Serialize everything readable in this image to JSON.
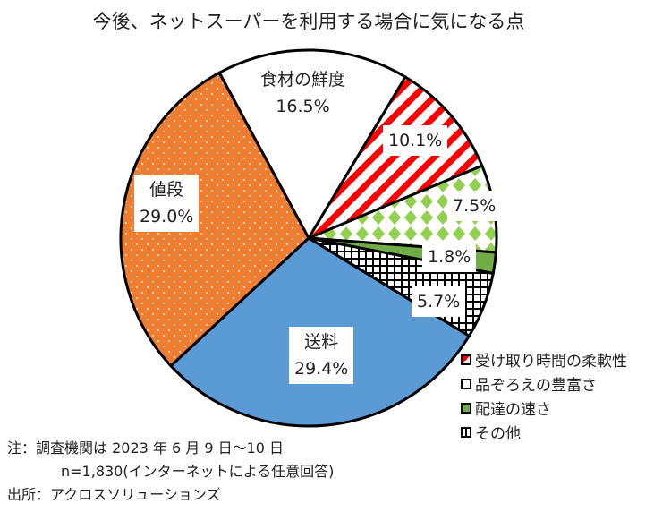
{
  "chart_data": {
    "type": "pie",
    "title": "今後、ネットスーパーを利用する場合に気になる点",
    "start_angle_deg": -28.4,
    "slices": [
      {
        "name": "食材の鮮度",
        "value": 16.5,
        "label": "16.5%",
        "fill": "#ffffff",
        "pattern": "none"
      },
      {
        "name": "受け取り時間の柔軟性",
        "value": 10.1,
        "label": "10.1%",
        "fill": "#ff0000",
        "pattern": "stripes"
      },
      {
        "name": "品ぞろえの豊富さ",
        "value": 7.5,
        "label": "7.5%",
        "fill": "#92d050",
        "pattern": "diamonds"
      },
      {
        "name": "配達の速さ",
        "value": 1.8,
        "label": "1.8%",
        "fill": "#70ad47",
        "pattern": "solid"
      },
      {
        "name": "その他",
        "value": 5.7,
        "label": "5.7%",
        "fill": "#000000",
        "pattern": "grid"
      },
      {
        "name": "送料",
        "value": 29.4,
        "label": "29.4%",
        "fill": "#5b9bd5",
        "pattern": "solid"
      },
      {
        "name": "値段",
        "value": 29.0,
        "label": "29.0%",
        "fill": "#ed7d31",
        "pattern": "dots"
      }
    ],
    "legend": [
      "受け取り時間の柔軟性",
      "品ぞろえの豊富さ",
      "配達の速さ",
      "その他"
    ],
    "legend_position": "bottom-right"
  },
  "notes": {
    "line1": "注：調査機関は 2023 年 6 月 9 日～10 日",
    "line2": "n=1,830(インターネットによる任意回答)",
    "line3": "出所：アクロスソリューションズ"
  }
}
